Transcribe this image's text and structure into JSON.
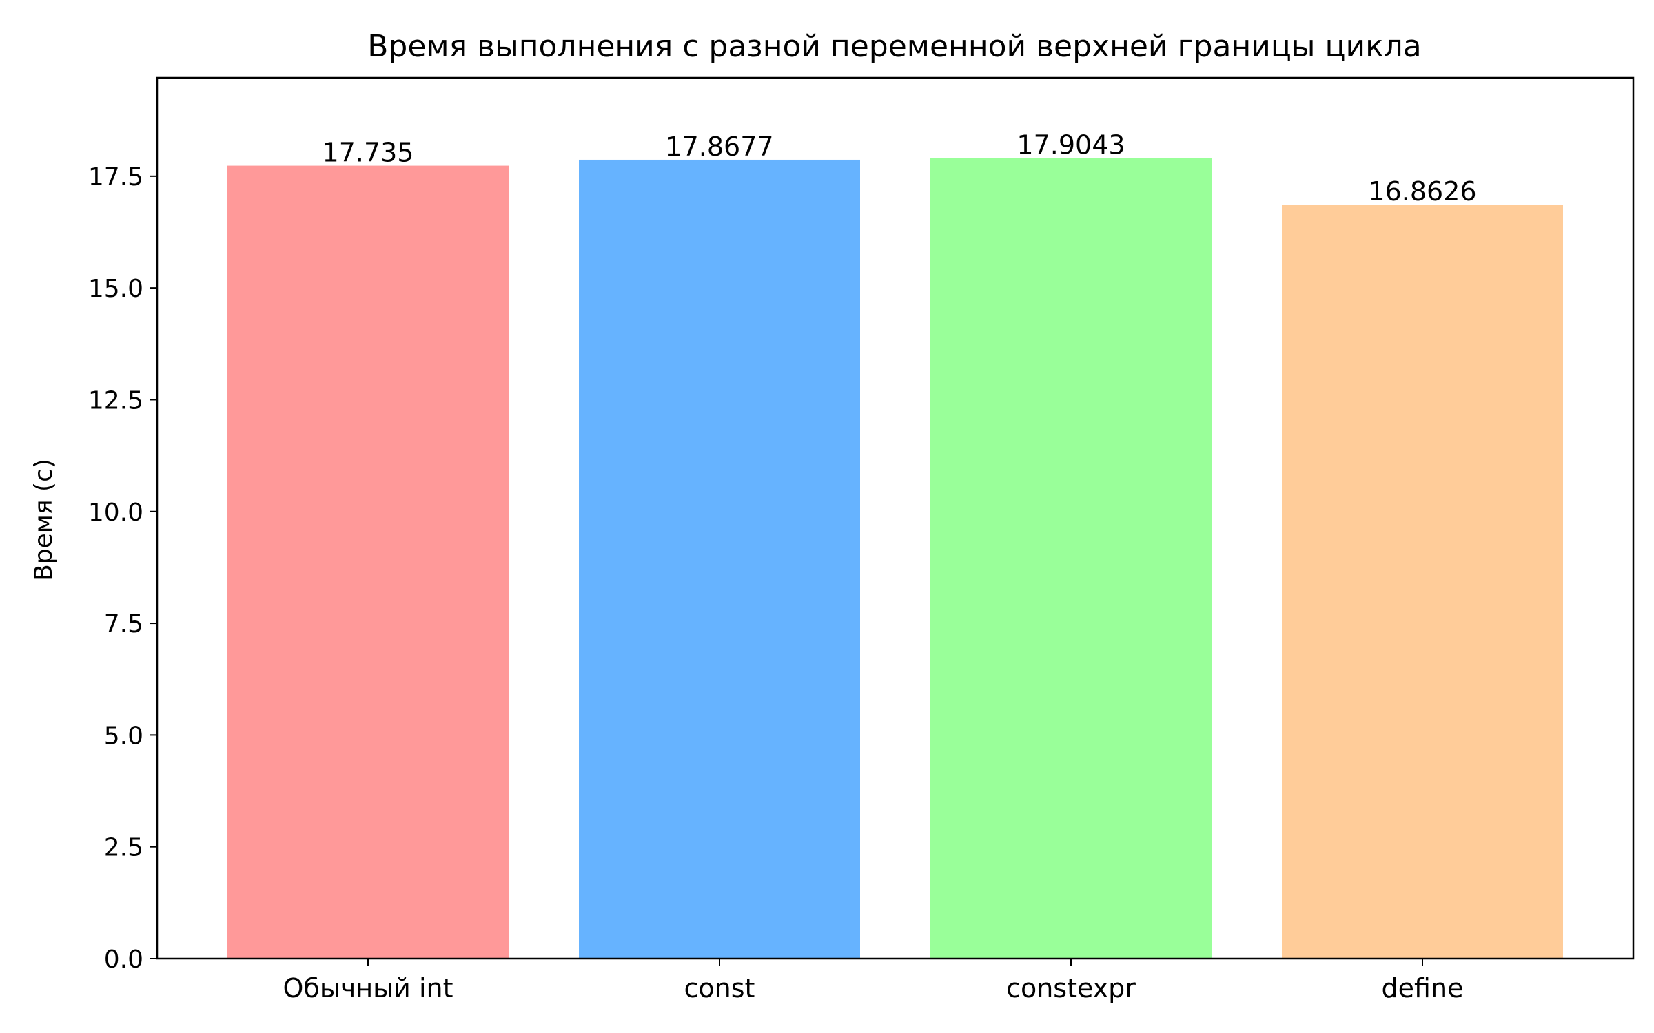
{
  "chart_data": {
    "type": "bar",
    "title": "Время выполнения с разной переменной верхней границы цикла",
    "xlabel": "",
    "ylabel": "Время (с)",
    "categories": [
      "Обычный int",
      "const",
      "constexpr",
      "define"
    ],
    "values": [
      17.735,
      17.8677,
      17.9043,
      16.8626
    ],
    "data_labels": [
      "17.735",
      "17.8677",
      "17.9043",
      "16.8626"
    ],
    "colors": [
      "#ff9999",
      "#66b3ff",
      "#99ff99",
      "#ffcc99"
    ],
    "ylim": [
      0,
      19.7
    ],
    "yticks": [
      0.0,
      2.5,
      5.0,
      7.5,
      10.0,
      12.5,
      15.0,
      17.5
    ],
    "ytick_labels": [
      "0.0",
      "2.5",
      "5.0",
      "7.5",
      "10.0",
      "12.5",
      "15.0",
      "17.5"
    ],
    "grid": false,
    "legend": false
  }
}
